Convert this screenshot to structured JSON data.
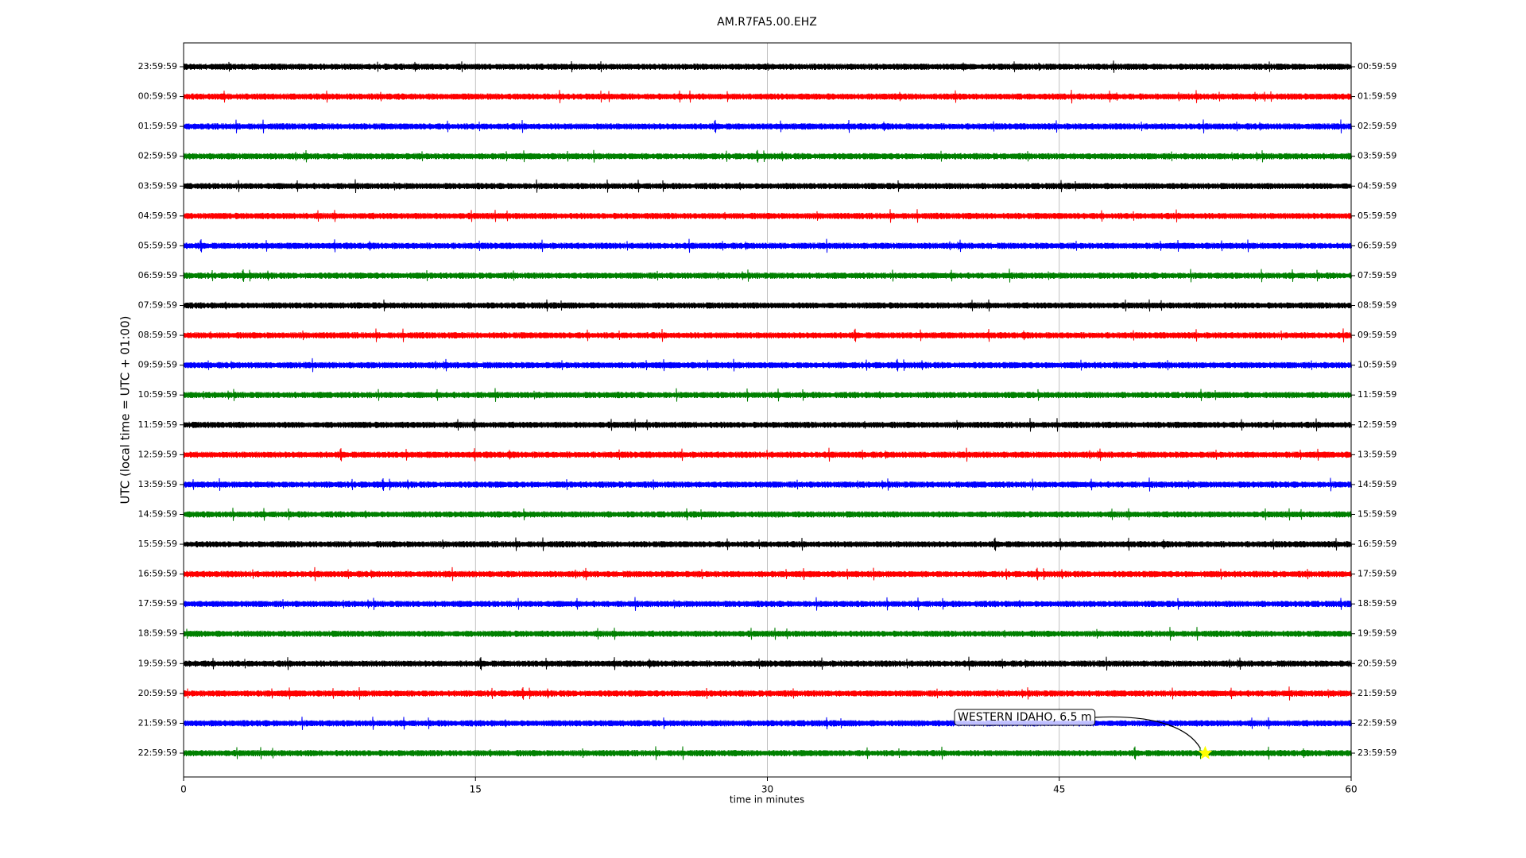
{
  "chart_data": {
    "type": "dayplot",
    "title": "AM.R7FA5.00.EHZ",
    "xlabel": "time in minutes",
    "ylabel": "UTC (local time = UTC + 01:00)",
    "xlim": [
      0,
      60
    ],
    "xticks": [
      0,
      15,
      30,
      45,
      60
    ],
    "grid": true,
    "colors": [
      "#000000",
      "#ff0000",
      "#0000ff",
      "#008000"
    ],
    "categories": [
      "23:59:59",
      "00:59:59",
      "01:59:59",
      "02:59:59",
      "03:59:59",
      "04:59:59",
      "05:59:59",
      "06:59:59",
      "07:59:59",
      "08:59:59",
      "09:59:59",
      "10:59:59",
      "11:59:59",
      "12:59:59",
      "13:59:59",
      "14:59:59",
      "15:59:59",
      "16:59:59",
      "17:59:59",
      "18:59:59",
      "19:59:59",
      "20:59:59",
      "21:59:59",
      "22:59:59"
    ],
    "right_categories": [
      "00:59:59",
      "01:59:59",
      "02:59:59",
      "03:59:59",
      "04:59:59",
      "05:59:59",
      "06:59:59",
      "07:59:59",
      "08:59:59",
      "09:59:59",
      "10:59:59",
      "11:59:59",
      "12:59:59",
      "13:59:59",
      "14:59:59",
      "15:59:59",
      "16:59:59",
      "17:59:59",
      "18:59:59",
      "19:59:59",
      "20:59:59",
      "21:59:59",
      "22:59:59",
      "23:59:59"
    ],
    "event": {
      "text": "WESTERN IDAHO, 6.5 m",
      "x": 52.5,
      "category": "22:59:59",
      "color": "#ffff00"
    }
  }
}
